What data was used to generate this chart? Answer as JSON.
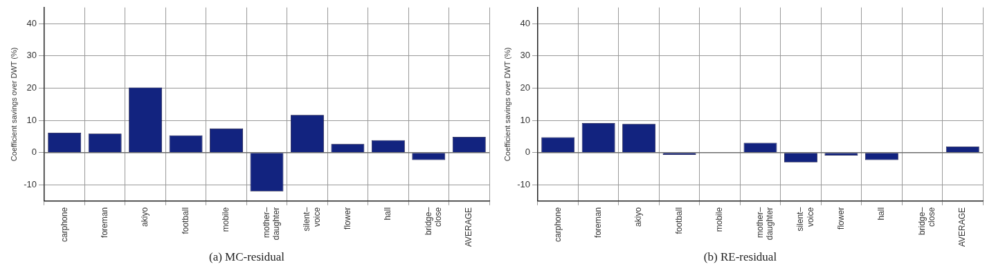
{
  "chart_data": [
    {
      "type": "bar",
      "title": "(a) MC-residual",
      "ylabel": "Coefficient savings over DWT (%)",
      "categories": [
        "carphone",
        "foreman",
        "akiyo",
        "football",
        "mobile",
        "mother–\ndaughter",
        "silent–\nvoice",
        "flower",
        "hall",
        "bridge–\nclose",
        "AVERAGE"
      ],
      "values": [
        6.2,
        5.9,
        20.2,
        5.4,
        7.5,
        -12,
        11.7,
        2.7,
        3.9,
        -2.3,
        4.9
      ],
      "color": "#12237f",
      "ylim": [
        -15,
        45
      ],
      "yticks": [
        -10,
        0,
        10,
        20,
        30,
        40
      ],
      "grid": true,
      "legend": false
    },
    {
      "type": "bar",
      "title": "(b) RE-residual",
      "ylabel": "Coefficient savings over DWT (%)",
      "categories": [
        "carphone",
        "foreman",
        "akiyo",
        "football",
        "mobile",
        "mother–\ndaughter",
        "silent–\nvoice",
        "flower",
        "hall",
        "bridge–\nclose",
        "AVERAGE"
      ],
      "values": [
        4.8,
        9.2,
        8.9,
        -0.7,
        0.1,
        3.1,
        -3.0,
        -0.9,
        -2.3,
        0.2,
        1.9
      ],
      "color": "#12237f",
      "ylim": [
        -15,
        45
      ],
      "yticks": [
        -10,
        0,
        10,
        20,
        30,
        40
      ],
      "grid": true,
      "legend": false
    }
  ]
}
